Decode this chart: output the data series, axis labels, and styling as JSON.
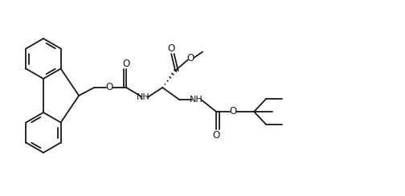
{
  "bg_color": "#ffffff",
  "line_color": "#1a1a1a",
  "lw": 1.3,
  "figsize": [
    5.04,
    2.44
  ],
  "dpi": 100,
  "xlim": [
    0,
    10.08
  ],
  "ylim": [
    0,
    4.88
  ]
}
